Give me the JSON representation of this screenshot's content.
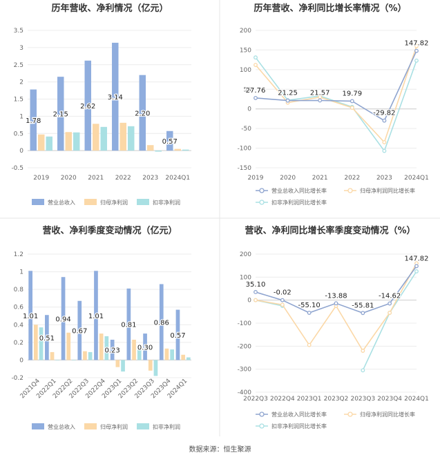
{
  "source_text": "数据来源：恒生聚源",
  "chart_data": [
    {
      "type": "bar",
      "title": "历年营收、净利情况（亿元）",
      "categories": [
        "2019",
        "2020",
        "2021",
        "2022",
        "2023",
        "2024Q1"
      ],
      "yticks": [
        "3.5",
        "3",
        "2.5",
        "2",
        "1.5",
        "1",
        "0.5",
        "0",
        "-0.5"
      ],
      "ylim": [
        -0.5,
        3.5
      ],
      "grid": true,
      "legend_position": "bottom",
      "label_series": 0,
      "series": [
        {
          "name": "营业总收入",
          "color": "#8fadde",
          "values": [
            1.78,
            2.15,
            2.62,
            3.14,
            2.2,
            0.57
          ],
          "labels": [
            "1.78",
            "2.15",
            "2.62",
            "3.14",
            "2.20",
            "0.57"
          ]
        },
        {
          "name": "归母净利润",
          "color": "#fbd8a7",
          "values": [
            0.47,
            0.54,
            0.78,
            0.81,
            0.16,
            0.05
          ]
        },
        {
          "name": "扣非净利润",
          "color": "#a9e0e3",
          "values": [
            0.41,
            0.53,
            0.69,
            0.71,
            -0.03,
            0.03
          ]
        }
      ]
    },
    {
      "type": "line",
      "title": "历年营收、净利同比增长率情况（%）",
      "categories": [
        "2019",
        "2020",
        "2021",
        "2022",
        "2023",
        "2024Q1"
      ],
      "yticks": [
        "200",
        "150",
        "100",
        "50",
        "0",
        "-50",
        "-100",
        "-150"
      ],
      "ylim": [
        -150,
        200
      ],
      "grid": true,
      "legend_position": "bottom",
      "label_series": 0,
      "series": [
        {
          "name": "营业总收入同比增长率",
          "color": "#8ea4cf",
          "values": [
            27.76,
            21.25,
            21.57,
            19.79,
            -29.82,
            147.82
          ],
          "labels": [
            "27.76",
            "21.25",
            "21.57",
            "19.79",
            "-29.82",
            "147.82"
          ]
        },
        {
          "name": "归母净利润同比增长率",
          "color": "#fbd8a7",
          "values": [
            112,
            16,
            30,
            3,
            -85,
            160
          ]
        },
        {
          "name": "扣非净利润同比增长率",
          "color": "#a9e0e3",
          "values": [
            131,
            22,
            33,
            5,
            -107,
            123
          ]
        }
      ]
    },
    {
      "type": "bar",
      "title": "营收、净利季度变动情况（亿元）",
      "categories": [
        "2021Q4",
        "2022Q1",
        "2022Q2",
        "2022Q3",
        "2022Q4",
        "2023Q1",
        "2023Q2",
        "2023Q3",
        "2023Q4",
        "2024Q1"
      ],
      "yticks": [
        "1.2",
        "1",
        "0.8",
        "0.6",
        "0.4",
        "0.2",
        "0",
        "-0.2"
      ],
      "ylim": [
        -0.2,
        1.2
      ],
      "grid": true,
      "legend_position": "bottom",
      "label_series": 0,
      "series": [
        {
          "name": "营业总收入",
          "color": "#8fadde",
          "values": [
            1.01,
            0.51,
            0.94,
            0.67,
            1.01,
            0.23,
            0.81,
            0.3,
            0.86,
            0.57
          ],
          "labels": [
            "1.01",
            "0.51",
            "0.94",
            "0.67",
            "1.01",
            "0.23",
            "0.81",
            "0.30",
            "0.86",
            "0.57"
          ]
        },
        {
          "name": "归母净利润",
          "color": "#fbd8a7",
          "values": [
            0.4,
            0.09,
            0.31,
            0.1,
            0.3,
            -0.08,
            0.23,
            -0.12,
            0.13,
            0.06
          ]
        },
        {
          "name": "扣非净利润",
          "color": "#a9e0e3",
          "values": [
            0.37,
            0.0,
            0.0,
            0.09,
            0.27,
            -0.13,
            0.15,
            -0.18,
            0.12,
            0.03
          ]
        }
      ]
    },
    {
      "type": "line",
      "title": "营收、净利同比增长率季度变动情况（%）",
      "categories": [
        "2022Q3",
        "2022Q4",
        "2023Q1",
        "2023Q2",
        "2023Q3",
        "2023Q4",
        "2024Q1"
      ],
      "yticks": [
        "200",
        "100",
        "0",
        "-100",
        "-200",
        "-300",
        "-400"
      ],
      "ylim": [
        -400,
        200
      ],
      "grid": true,
      "legend_position": "bottom",
      "label_series": 0,
      "series": [
        {
          "name": "营业总收入同比增长率",
          "color": "#8ea4cf",
          "values": [
            35.1,
            -0.02,
            -55.1,
            -13.88,
            -55.81,
            -14.62,
            147.82
          ],
          "labels": [
            "35.10",
            "-0.02",
            "-55.10",
            "-13.88",
            "-55.81",
            "-14.62",
            "147.82"
          ]
        },
        {
          "name": "归母净利润同比增长率",
          "color": "#fbd8a7",
          "values": [
            0,
            -20,
            -195,
            -25,
            -220,
            -55,
            160
          ]
        },
        {
          "name": "扣非净利润同比增长率",
          "color": "#a9e0e3",
          "values": [
            0,
            -25,
            null,
            null,
            -305,
            -55,
            125
          ]
        }
      ]
    }
  ]
}
